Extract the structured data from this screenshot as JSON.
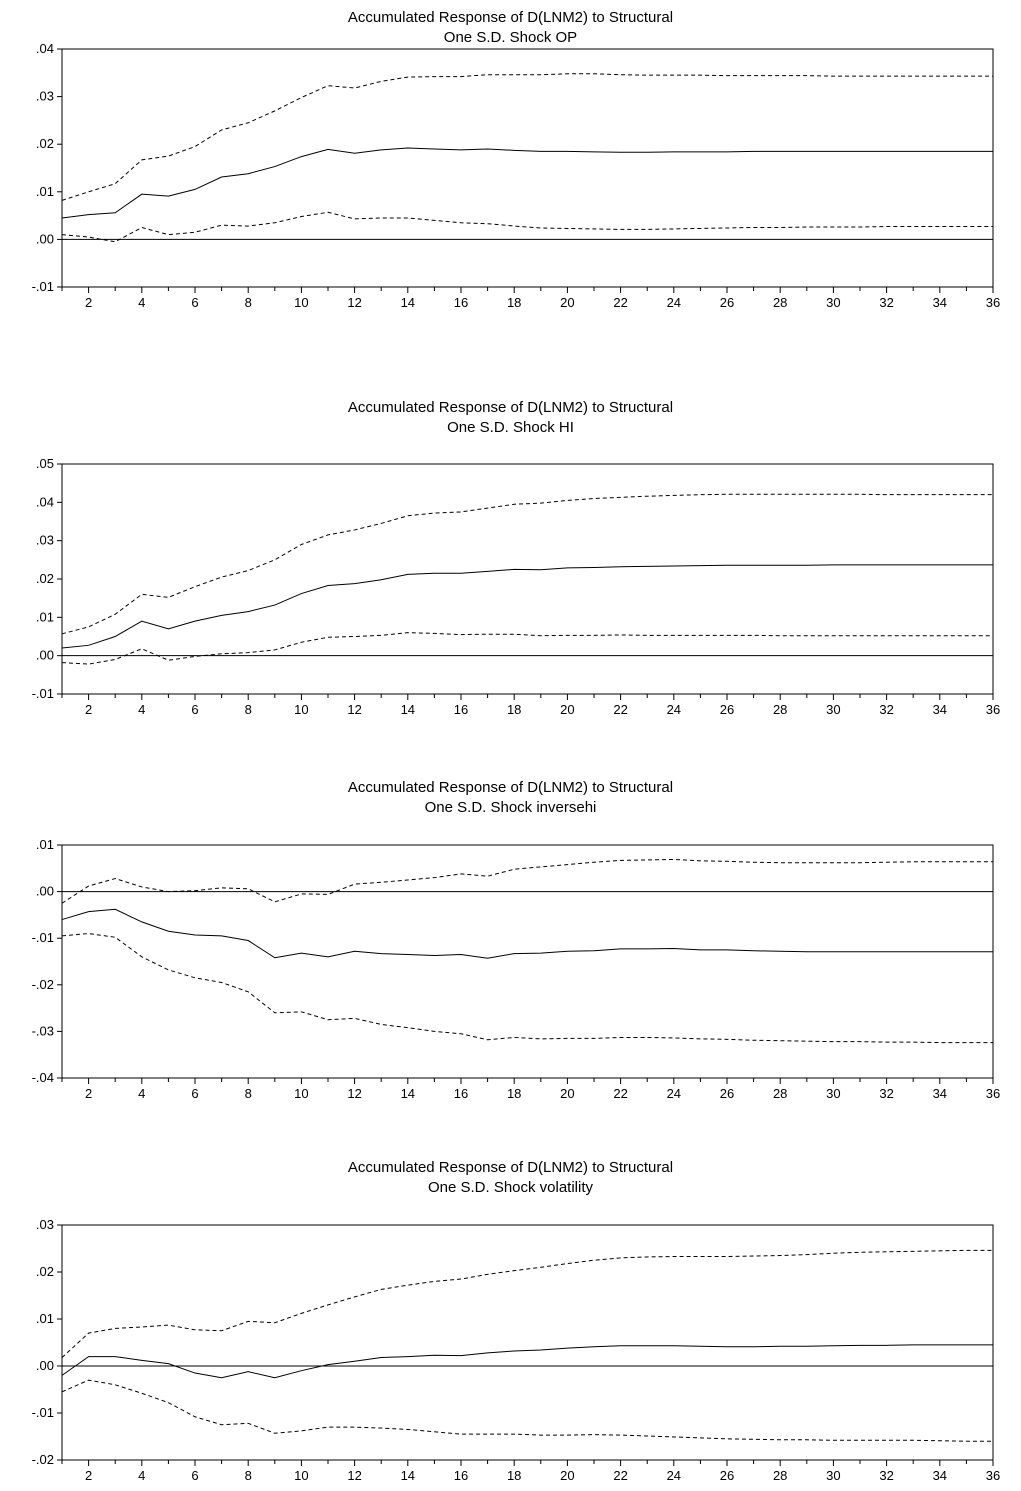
{
  "chart_data": [
    {
      "type": "line",
      "title_line1": "Accumulated Response of D(LNM2) to Structural",
      "title_line2": "One S.D. Shock OP",
      "ylim": [
        -0.01,
        0.04
      ],
      "yticks": [
        -0.01,
        0.0,
        0.01,
        0.02,
        0.03,
        0.04
      ],
      "ytick_labels": [
        "-.01",
        ".00",
        ".01",
        ".02",
        ".03",
        ".04"
      ],
      "xlim": [
        1,
        36
      ],
      "xticks": [
        2,
        4,
        6,
        8,
        10,
        12,
        14,
        16,
        18,
        20,
        22,
        24,
        26,
        28,
        30,
        32,
        34,
        36
      ],
      "x": [
        1,
        2,
        3,
        4,
        5,
        6,
        7,
        8,
        9,
        10,
        11,
        12,
        13,
        14,
        15,
        16,
        17,
        18,
        19,
        20,
        21,
        22,
        23,
        24,
        25,
        26,
        27,
        28,
        29,
        30,
        31,
        32,
        33,
        34,
        35,
        36
      ],
      "zero_line": true,
      "series": [
        {
          "style": "solid",
          "values": [
            0.0045,
            0.0052,
            0.0056,
            0.0095,
            0.0091,
            0.0105,
            0.0131,
            0.0138,
            0.0153,
            0.0174,
            0.0189,
            0.0181,
            0.0188,
            0.0192,
            0.019,
            0.0188,
            0.019,
            0.0187,
            0.0185,
            0.0185,
            0.0184,
            0.0183,
            0.0183,
            0.0184,
            0.0184,
            0.0184,
            0.0185,
            0.0185,
            0.0185,
            0.0185,
            0.0185,
            0.0185,
            0.0185,
            0.0185,
            0.0185,
            0.0185
          ]
        },
        {
          "style": "dashed",
          "values": [
            0.0082,
            0.01,
            0.0117,
            0.0167,
            0.0175,
            0.0195,
            0.023,
            0.0245,
            0.027,
            0.0298,
            0.0323,
            0.0318,
            0.0332,
            0.0341,
            0.0342,
            0.0342,
            0.0346,
            0.0346,
            0.0346,
            0.0348,
            0.0348,
            0.0346,
            0.0345,
            0.0345,
            0.0345,
            0.0344,
            0.0344,
            0.0344,
            0.0344,
            0.0343,
            0.0343,
            0.0343,
            0.0343,
            0.0343,
            0.0343,
            0.0343
          ]
        },
        {
          "style": "dashed",
          "values": [
            0.001,
            0.0005,
            -0.0005,
            0.0025,
            0.001,
            0.0015,
            0.003,
            0.0028,
            0.0035,
            0.0048,
            0.0057,
            0.0043,
            0.0045,
            0.0045,
            0.004,
            0.0035,
            0.0033,
            0.0028,
            0.0024,
            0.0023,
            0.0022,
            0.0021,
            0.0021,
            0.0022,
            0.0023,
            0.0024,
            0.0025,
            0.0025,
            0.0026,
            0.0026,
            0.0026,
            0.0027,
            0.0027,
            0.0027,
            0.0027,
            0.0027
          ]
        }
      ]
    },
    {
      "type": "line",
      "title_line1": "Accumulated Response of D(LNM2) to Structural",
      "title_line2": "One S.D. Shock HI",
      "ylim": [
        -0.01,
        0.05
      ],
      "yticks": [
        -0.01,
        0.0,
        0.01,
        0.02,
        0.03,
        0.04,
        0.05
      ],
      "ytick_labels": [
        "-.01",
        ".00",
        ".01",
        ".02",
        ".03",
        ".04",
        ".05"
      ],
      "xlim": [
        1,
        36
      ],
      "xticks": [
        2,
        4,
        6,
        8,
        10,
        12,
        14,
        16,
        18,
        20,
        22,
        24,
        26,
        28,
        30,
        32,
        34,
        36
      ],
      "x": [
        1,
        2,
        3,
        4,
        5,
        6,
        7,
        8,
        9,
        10,
        11,
        12,
        13,
        14,
        15,
        16,
        17,
        18,
        19,
        20,
        21,
        22,
        23,
        24,
        25,
        26,
        27,
        28,
        29,
        30,
        31,
        32,
        33,
        34,
        35,
        36
      ],
      "zero_line": true,
      "series": [
        {
          "style": "solid",
          "values": [
            0.002,
            0.0027,
            0.005,
            0.009,
            0.007,
            0.009,
            0.0105,
            0.0115,
            0.0132,
            0.0162,
            0.0183,
            0.0188,
            0.0198,
            0.0212,
            0.0215,
            0.0215,
            0.022,
            0.0225,
            0.0224,
            0.0229,
            0.023,
            0.0232,
            0.0233,
            0.0234,
            0.0235,
            0.0236,
            0.0236,
            0.0236,
            0.0236,
            0.0237,
            0.0237,
            0.0237,
            0.0237,
            0.0237,
            0.0237,
            0.0237
          ]
        },
        {
          "style": "dashed",
          "values": [
            0.0057,
            0.0075,
            0.0108,
            0.016,
            0.0152,
            0.018,
            0.0205,
            0.0222,
            0.025,
            0.029,
            0.0315,
            0.0328,
            0.0345,
            0.0365,
            0.0372,
            0.0375,
            0.0385,
            0.0395,
            0.0398,
            0.0405,
            0.041,
            0.0413,
            0.0416,
            0.0418,
            0.042,
            0.0421,
            0.0421,
            0.0421,
            0.0421,
            0.0421,
            0.0421,
            0.042,
            0.042,
            0.042,
            0.042,
            0.042
          ]
        },
        {
          "style": "dashed",
          "values": [
            -0.0018,
            -0.0022,
            -0.001,
            0.0018,
            -0.0012,
            -0.0002,
            0.0005,
            0.0008,
            0.0015,
            0.0035,
            0.0048,
            0.005,
            0.0053,
            0.006,
            0.0058,
            0.0055,
            0.0056,
            0.0056,
            0.0052,
            0.0053,
            0.0053,
            0.0054,
            0.0053,
            0.0053,
            0.0053,
            0.0053,
            0.0053,
            0.0052,
            0.0052,
            0.0052,
            0.0052,
            0.0052,
            0.0052,
            0.0052,
            0.0052,
            0.0052
          ]
        }
      ]
    },
    {
      "type": "line",
      "title_line1": "Accumulated Response of D(LNM2) to Structural",
      "title_line2": "One S.D. Shock inversehi",
      "ylim": [
        -0.04,
        0.01
      ],
      "yticks": [
        -0.04,
        -0.03,
        -0.02,
        -0.01,
        0.0,
        0.01
      ],
      "ytick_labels": [
        "-.04",
        "-.03",
        "-.02",
        "-.01",
        ".00",
        ".01"
      ],
      "xlim": [
        1,
        36
      ],
      "xticks": [
        2,
        4,
        6,
        8,
        10,
        12,
        14,
        16,
        18,
        20,
        22,
        24,
        26,
        28,
        30,
        32,
        34,
        36
      ],
      "x": [
        1,
        2,
        3,
        4,
        5,
        6,
        7,
        8,
        9,
        10,
        11,
        12,
        13,
        14,
        15,
        16,
        17,
        18,
        19,
        20,
        21,
        22,
        23,
        24,
        25,
        26,
        27,
        28,
        29,
        30,
        31,
        32,
        33,
        34,
        35,
        36
      ],
      "zero_line": true,
      "series": [
        {
          "style": "solid",
          "values": [
            -0.006,
            -0.0043,
            -0.0038,
            -0.0065,
            -0.0085,
            -0.0093,
            -0.0095,
            -0.0105,
            -0.0142,
            -0.0132,
            -0.014,
            -0.0128,
            -0.0133,
            -0.0135,
            -0.0137,
            -0.0135,
            -0.0143,
            -0.0133,
            -0.0132,
            -0.0128,
            -0.0127,
            -0.0123,
            -0.0123,
            -0.0122,
            -0.0125,
            -0.0125,
            -0.0127,
            -0.0128,
            -0.0129,
            -0.0129,
            -0.0129,
            -0.0129,
            -0.0129,
            -0.0129,
            -0.0129,
            -0.0129
          ]
        },
        {
          "style": "dashed",
          "values": [
            -0.0025,
            0.0012,
            0.0028,
            0.001,
            0.0,
            0.0002,
            0.0008,
            0.0006,
            -0.0022,
            -0.0005,
            -0.0006,
            0.0016,
            0.002,
            0.0025,
            0.003,
            0.0038,
            0.0033,
            0.0048,
            0.0053,
            0.0058,
            0.0063,
            0.0067,
            0.0068,
            0.0069,
            0.0066,
            0.0065,
            0.0063,
            0.0062,
            0.0062,
            0.0062,
            0.0062,
            0.0063,
            0.0064,
            0.0064,
            0.0064,
            0.0064
          ]
        },
        {
          "style": "dashed",
          "values": [
            -0.0095,
            -0.009,
            -0.0098,
            -0.014,
            -0.0168,
            -0.0185,
            -0.0195,
            -0.0215,
            -0.026,
            -0.0258,
            -0.0275,
            -0.0272,
            -0.0285,
            -0.0292,
            -0.03,
            -0.0305,
            -0.0318,
            -0.0313,
            -0.0316,
            -0.0315,
            -0.0315,
            -0.0313,
            -0.0313,
            -0.0314,
            -0.0316,
            -0.0317,
            -0.0319,
            -0.032,
            -0.0321,
            -0.0322,
            -0.0322,
            -0.0323,
            -0.0323,
            -0.0324,
            -0.0324,
            -0.0324
          ]
        }
      ]
    },
    {
      "type": "line",
      "title_line1": "Accumulated Response of D(LNM2) to Structural",
      "title_line2": "One S.D. Shock volatility",
      "ylim": [
        -0.02,
        0.03
      ],
      "yticks": [
        -0.02,
        -0.01,
        0.0,
        0.01,
        0.02,
        0.03
      ],
      "ytick_labels": [
        "-.02",
        "-.01",
        ".00",
        ".01",
        ".02",
        ".03"
      ],
      "xlim": [
        1,
        36
      ],
      "xticks": [
        2,
        4,
        6,
        8,
        10,
        12,
        14,
        16,
        18,
        20,
        22,
        24,
        26,
        28,
        30,
        32,
        34,
        36
      ],
      "x": [
        1,
        2,
        3,
        4,
        5,
        6,
        7,
        8,
        9,
        10,
        11,
        12,
        13,
        14,
        15,
        16,
        17,
        18,
        19,
        20,
        21,
        22,
        23,
        24,
        25,
        26,
        27,
        28,
        29,
        30,
        31,
        32,
        33,
        34,
        35,
        36
      ],
      "zero_line": true,
      "series": [
        {
          "style": "solid",
          "values": [
            -0.002,
            0.002,
            0.002,
            0.0012,
            0.0005,
            -0.0015,
            -0.0025,
            -0.0012,
            -0.0025,
            -0.001,
            0.0003,
            0.001,
            0.0018,
            0.002,
            0.0023,
            0.0022,
            0.0028,
            0.0032,
            0.0034,
            0.0038,
            0.0041,
            0.0043,
            0.0043,
            0.0043,
            0.0042,
            0.0041,
            0.0041,
            0.0042,
            0.0042,
            0.0043,
            0.0044,
            0.0044,
            0.0045,
            0.0045,
            0.0045,
            0.0045
          ]
        },
        {
          "style": "dashed",
          "values": [
            0.0018,
            0.007,
            0.008,
            0.0083,
            0.0087,
            0.0077,
            0.0075,
            0.0095,
            0.0092,
            0.0112,
            0.013,
            0.0147,
            0.0163,
            0.0172,
            0.018,
            0.0185,
            0.0195,
            0.0203,
            0.021,
            0.0218,
            0.0225,
            0.023,
            0.0232,
            0.0233,
            0.0233,
            0.0233,
            0.0234,
            0.0235,
            0.0237,
            0.024,
            0.0242,
            0.0243,
            0.0244,
            0.0245,
            0.0246,
            0.0246
          ]
        },
        {
          "style": "dashed",
          "values": [
            -0.0055,
            -0.003,
            -0.004,
            -0.0058,
            -0.0078,
            -0.0108,
            -0.0125,
            -0.0122,
            -0.0143,
            -0.0138,
            -0.013,
            -0.013,
            -0.0132,
            -0.0135,
            -0.014,
            -0.0145,
            -0.0145,
            -0.0145,
            -0.0147,
            -0.0147,
            -0.0146,
            -0.0147,
            -0.0149,
            -0.0151,
            -0.0153,
            -0.0155,
            -0.0156,
            -0.0157,
            -0.0157,
            -0.0158,
            -0.0158,
            -0.0158,
            -0.0158,
            -0.0159,
            -0.016,
            -0.016
          ]
        }
      ]
    }
  ]
}
